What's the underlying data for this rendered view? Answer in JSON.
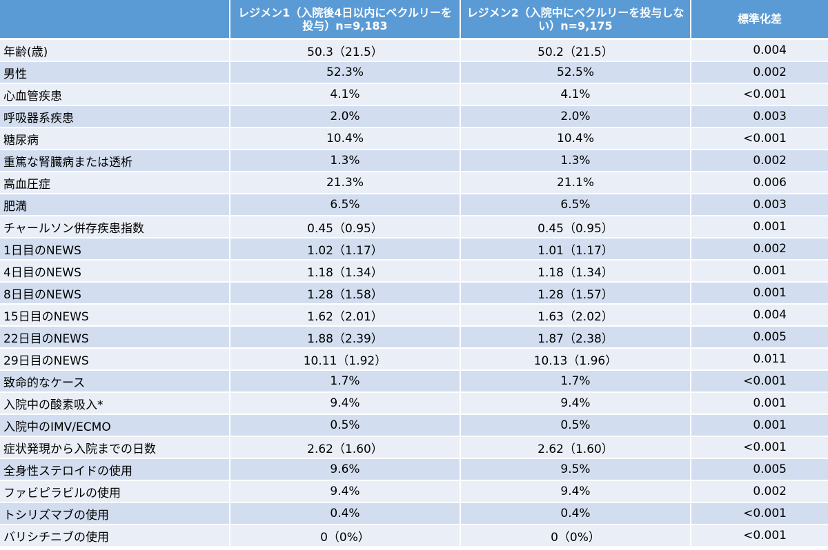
{
  "header": {
    "col1": "",
    "col2": "レジメン1（入院後4日以内にベクルリーを投与）n=9,183",
    "col3": "レジメン2（入院中にベクルリーを投与しない）n=9,175",
    "col4": "標準化差"
  },
  "rows": [
    {
      "label": "年齢(歳)",
      "r1": "50.3（21.5）",
      "r2": "50.2（21.5）",
      "smd": "0.004"
    },
    {
      "label": "男性",
      "r1": "52.3%",
      "r2": "52.5%",
      "smd": "0.002"
    },
    {
      "label": "心血管疾患",
      "r1": "4.1%",
      "r2": "4.1%",
      "smd": "<0.001"
    },
    {
      "label": "呼吸器系疾患",
      "r1": "2.0%",
      "r2": "2.0%",
      "smd": "0.003"
    },
    {
      "label": "糖尿病",
      "r1": "10.4%",
      "r2": "10.4%",
      "smd": "<0.001"
    },
    {
      "label": "重篤な腎臓病または透析",
      "r1": "1.3%",
      "r2": "1.3%",
      "smd": "0.002"
    },
    {
      "label": "高血圧症",
      "r1": "21.3%",
      "r2": "21.1%",
      "smd": "0.006"
    },
    {
      "label": "肥満",
      "r1": "6.5%",
      "r2": "6.5%",
      "smd": "0.003"
    },
    {
      "label": "チャールソン併存疾患指数",
      "r1": "0.45（0.95）",
      "r2": "0.45（0.95）",
      "smd": "0.001"
    },
    {
      "label": "1日目のNEWS",
      "r1": "1.02（1.17）",
      "r2": "1.01（1.17）",
      "smd": "0.002"
    },
    {
      "label": "4日目のNEWS",
      "r1": "1.18（1.34）",
      "r2": "1.18（1.34）",
      "smd": "0.001"
    },
    {
      "label": "8日目のNEWS",
      "r1": "1.28（1.58）",
      "r2": "1.28（1.57）",
      "smd": "0.001"
    },
    {
      "label": "15日目のNEWS",
      "r1": "1.62（2.01）",
      "r2": "1.63（2.02）",
      "smd": "0.004"
    },
    {
      "label": "22日目のNEWS",
      "r1": "1.88（2.39）",
      "r2": "1.87（2.38）",
      "smd": "0.005"
    },
    {
      "label": "29日目のNEWS",
      "r1": "10.11（1.92）",
      "r2": "10.13（1.96）",
      "smd": "0.011"
    },
    {
      "label": "致命的なケース",
      "r1": "1.7%",
      "r2": "1.7%",
      "smd": "<0.001"
    },
    {
      "label": "入院中の酸素吸入*",
      "r1": "9.4%",
      "r2": "9.4%",
      "smd": "0.001"
    },
    {
      "label": "入院中のIMV/ECMO",
      "r1": "0.5%",
      "r2": "0.5%",
      "smd": "0.001"
    },
    {
      "label": "症状発現から入院までの日数",
      "r1": "2.62（1.60）",
      "r2": "2.62（1.60）",
      "smd": "<0.001"
    },
    {
      "label": "全身性ステロイドの使用",
      "r1": "9.6%",
      "r2": "9.5%",
      "smd": "0.005"
    },
    {
      "label": "ファビピラビルの使用",
      "r1": "9.4%",
      "r2": "9.4%",
      "smd": "0.002"
    },
    {
      "label": "トシリズマブの使用",
      "r1": "0.4%",
      "r2": "0.4%",
      "smd": "<0.001"
    },
    {
      "label": "バリシチニブの使用",
      "r1": "0（0%）",
      "r2": "0（0%）",
      "smd": "<0.001"
    }
  ]
}
